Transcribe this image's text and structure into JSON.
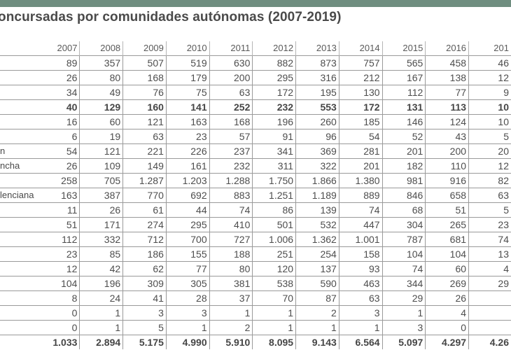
{
  "title": "oncursadas por comunidades autónomas (2007-2019)",
  "columns": [
    "2007",
    "2008",
    "2009",
    "2010",
    "2011",
    "2012",
    "2013",
    "2014",
    "2015",
    "2016",
    "201"
  ],
  "rows": [
    {
      "label": "",
      "bold": false,
      "values": [
        "89",
        "357",
        "507",
        "519",
        "630",
        "882",
        "873",
        "757",
        "565",
        "458",
        "46"
      ]
    },
    {
      "label": "",
      "bold": false,
      "values": [
        "26",
        "80",
        "168",
        "179",
        "200",
        "295",
        "316",
        "212",
        "167",
        "138",
        "12"
      ]
    },
    {
      "label": "",
      "bold": false,
      "values": [
        "34",
        "49",
        "76",
        "75",
        "63",
        "172",
        "195",
        "130",
        "112",
        "77",
        "9"
      ]
    },
    {
      "label": "",
      "bold": true,
      "values": [
        "40",
        "129",
        "160",
        "141",
        "252",
        "232",
        "553",
        "172",
        "131",
        "113",
        "10"
      ]
    },
    {
      "label": "",
      "bold": false,
      "values": [
        "16",
        "60",
        "121",
        "163",
        "168",
        "196",
        "260",
        "185",
        "146",
        "124",
        "10"
      ]
    },
    {
      "label": "",
      "bold": false,
      "values": [
        "6",
        "19",
        "63",
        "23",
        "57",
        "91",
        "96",
        "54",
        "52",
        "43",
        "5"
      ]
    },
    {
      "label": "n",
      "bold": false,
      "values": [
        "54",
        "121",
        "221",
        "226",
        "237",
        "341",
        "369",
        "281",
        "201",
        "200",
        "20"
      ]
    },
    {
      "label": "ncha",
      "bold": false,
      "values": [
        "26",
        "109",
        "149",
        "161",
        "232",
        "311",
        "322",
        "201",
        "182",
        "110",
        "12"
      ]
    },
    {
      "label": "",
      "bold": false,
      "values": [
        "258",
        "705",
        "1.287",
        "1.203",
        "1.288",
        "1.750",
        "1.866",
        "1.380",
        "981",
        "916",
        "82"
      ]
    },
    {
      "label": "lenciana",
      "bold": false,
      "values": [
        "163",
        "387",
        "770",
        "692",
        "883",
        "1.251",
        "1.189",
        "889",
        "846",
        "658",
        "63"
      ]
    },
    {
      "label": "",
      "bold": false,
      "values": [
        "11",
        "26",
        "61",
        "44",
        "74",
        "86",
        "139",
        "74",
        "68",
        "51",
        "5"
      ]
    },
    {
      "label": "",
      "bold": false,
      "values": [
        "51",
        "171",
        "274",
        "295",
        "410",
        "501",
        "532",
        "447",
        "304",
        "265",
        "23"
      ]
    },
    {
      "label": "",
      "bold": false,
      "values": [
        "112",
        "332",
        "712",
        "700",
        "727",
        "1.006",
        "1.362",
        "1.001",
        "787",
        "681",
        "74"
      ]
    },
    {
      "label": "",
      "bold": false,
      "values": [
        "23",
        "85",
        "186",
        "155",
        "188",
        "251",
        "254",
        "158",
        "104",
        "104",
        "13"
      ]
    },
    {
      "label": "",
      "bold": false,
      "values": [
        "12",
        "42",
        "62",
        "77",
        "80",
        "120",
        "137",
        "93",
        "74",
        "60",
        "4"
      ]
    },
    {
      "label": "",
      "bold": false,
      "values": [
        "104",
        "196",
        "309",
        "305",
        "381",
        "538",
        "590",
        "463",
        "344",
        "269",
        "29"
      ]
    },
    {
      "label": "",
      "bold": false,
      "values": [
        "8",
        "24",
        "41",
        "28",
        "37",
        "70",
        "87",
        "63",
        "29",
        "26",
        ""
      ]
    },
    {
      "label": "",
      "bold": false,
      "values": [
        "0",
        "1",
        "3",
        "3",
        "1",
        "1",
        "2",
        "3",
        "1",
        "4",
        ""
      ]
    },
    {
      "label": "",
      "bold": false,
      "values": [
        "0",
        "1",
        "5",
        "1",
        "2",
        "1",
        "1",
        "1",
        "3",
        "0",
        ""
      ]
    }
  ],
  "total": {
    "label": "",
    "values": [
      "1.033",
      "2.894",
      "5.175",
      "4.990",
      "5.910",
      "8.095",
      "9.143",
      "6.564",
      "5.097",
      "4.297",
      "4.26"
    ]
  },
  "colors": {
    "header_rule": "#6f8e80",
    "text": "#4d4d4d",
    "grid": "#9a9a9a"
  }
}
